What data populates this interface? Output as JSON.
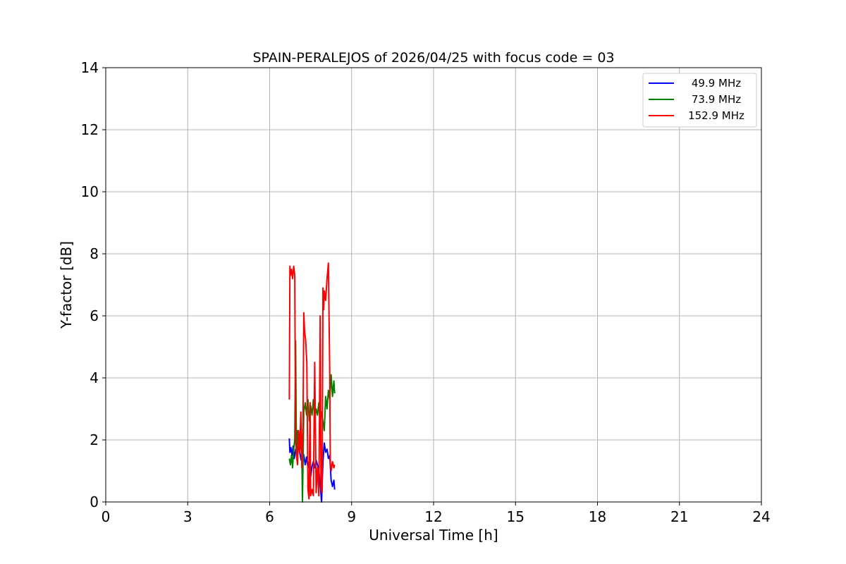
{
  "chart_data": {
    "type": "line",
    "title": "SPAIN-PERALEJOS of 2026/04/25 with focus code = 03",
    "xlabel": "Universal Time [h]",
    "ylabel": "Y-factor [dB]",
    "xlim": [
      0,
      24
    ],
    "ylim": [
      0,
      14
    ],
    "xticks": [
      0,
      3,
      6,
      9,
      12,
      15,
      18,
      21,
      24
    ],
    "yticks": [
      0,
      2,
      4,
      6,
      8,
      10,
      12,
      14
    ],
    "grid": true,
    "legend_position": "top-right",
    "series": [
      {
        "name": "49.9 MHz",
        "color": "#0000ff",
        "x": [
          6.72,
          6.74,
          6.78,
          6.82,
          6.86,
          6.9,
          6.95,
          7.0,
          7.05,
          7.1,
          7.15,
          7.2,
          7.25,
          7.3,
          7.35,
          7.4,
          7.45,
          7.5,
          7.55,
          7.6,
          7.65,
          7.7,
          7.75,
          7.8,
          7.85,
          7.9,
          7.95,
          8.0,
          8.05,
          8.1,
          8.15,
          8.2,
          8.25,
          8.3,
          8.35,
          8.38
        ],
        "y": [
          2.05,
          1.6,
          1.75,
          1.5,
          1.8,
          1.4,
          1.7,
          1.55,
          1.9,
          1.6,
          1.35,
          1.65,
          1.5,
          1.2,
          1.45,
          1.1,
          1.3,
          0.8,
          1.15,
          1.3,
          1.1,
          1.35,
          1.2,
          1.0,
          0.6,
          0.0,
          1.3,
          1.9,
          1.6,
          1.7,
          1.4,
          1.5,
          0.7,
          0.5,
          0.7,
          0.4
        ]
      },
      {
        "name": "73.9 MHz",
        "color": "#008000",
        "x": [
          6.72,
          6.76,
          6.8,
          6.84,
          6.88,
          6.92,
          6.95,
          6.98,
          7.02,
          7.06,
          7.1,
          7.14,
          7.18,
          7.2,
          7.22,
          7.25,
          7.3,
          7.35,
          7.4,
          7.45,
          7.5,
          7.55,
          7.6,
          7.65,
          7.7,
          7.75,
          7.8,
          7.85,
          7.9,
          7.95,
          8.0,
          8.05,
          8.1,
          8.15,
          8.2,
          8.25,
          8.3,
          8.35,
          8.38
        ],
        "y": [
          1.4,
          1.2,
          1.5,
          1.1,
          1.7,
          2.0,
          5.2,
          1.5,
          2.3,
          1.9,
          2.1,
          1.8,
          1.5,
          0.0,
          1.2,
          2.9,
          3.2,
          2.8,
          3.3,
          2.6,
          3.1,
          2.8,
          3.3,
          2.7,
          3.0,
          2.8,
          3.2,
          2.5,
          2.9,
          2.6,
          2.3,
          3.4,
          3.0,
          3.6,
          3.3,
          4.1,
          3.4,
          3.9,
          3.5
        ]
      },
      {
        "name": "152.9 MHz",
        "color": "#ff0000",
        "x": [
          6.72,
          6.74,
          6.76,
          6.8,
          6.84,
          6.88,
          6.92,
          6.95,
          6.98,
          7.02,
          7.06,
          7.1,
          7.14,
          7.18,
          7.22,
          7.25,
          7.28,
          7.32,
          7.36,
          7.4,
          7.44,
          7.48,
          7.5,
          7.55,
          7.6,
          7.65,
          7.7,
          7.75,
          7.8,
          7.85,
          7.88,
          7.92,
          7.95,
          7.98,
          8.0,
          8.05,
          8.1,
          8.15,
          8.2,
          8.22,
          8.25,
          8.3,
          8.35,
          8.38
        ],
        "y": [
          3.3,
          7.6,
          7.3,
          7.5,
          7.2,
          7.6,
          7.3,
          2.0,
          1.5,
          1.2,
          2.3,
          1.6,
          2.9,
          1.1,
          2.5,
          6.1,
          5.5,
          5.2,
          4.5,
          0.4,
          0.1,
          3.2,
          0.2,
          0.4,
          0.2,
          4.5,
          0.3,
          1.1,
          0.2,
          6.0,
          0.5,
          0.3,
          6.9,
          6.2,
          6.8,
          6.5,
          7.2,
          7.7,
          4.2,
          1.3,
          1.0,
          1.3,
          1.1,
          1.2
        ]
      }
    ]
  }
}
